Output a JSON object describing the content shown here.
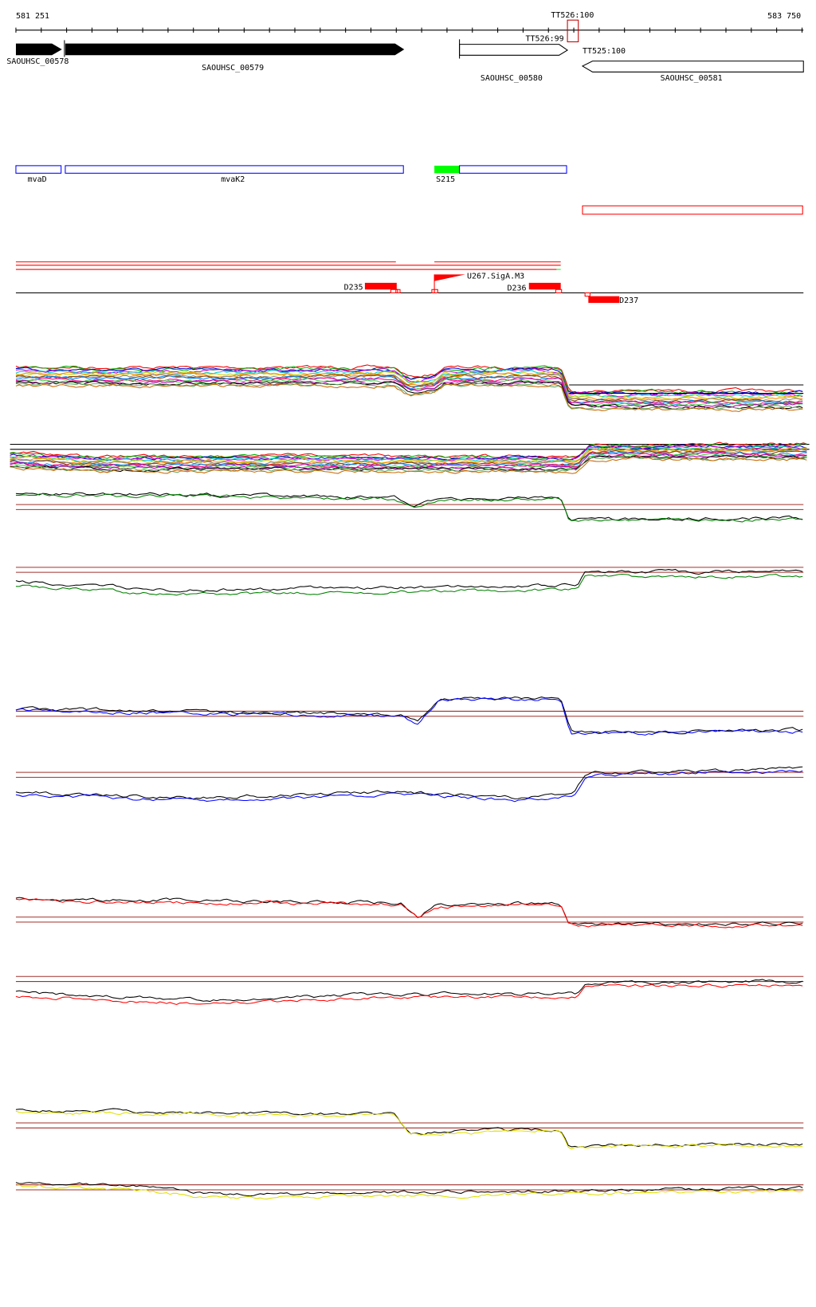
{
  "ruler": {
    "start_label": "581 251",
    "end_label": "583 750",
    "marker_label": "TT526:100"
  },
  "genes": [
    {
      "label": "SAOUHSC_00578",
      "strand": "+",
      "style": "filled"
    },
    {
      "label": "SAOUHSC_00579",
      "strand": "+",
      "style": "filled"
    },
    {
      "label": "SAOUHSC_00580",
      "strand": "+",
      "style": "open"
    },
    {
      "label": "SAOUHSC_00581",
      "strand": "-",
      "style": "open"
    }
  ],
  "overlap_labels": [
    "TT526:99",
    "TT525:100"
  ],
  "operons": [
    {
      "label": "mvaD"
    },
    {
      "label": "mvaK2"
    },
    {
      "label": "S215"
    }
  ],
  "features": [
    {
      "label": "D235"
    },
    {
      "label": "U267.SigA.M3"
    },
    {
      "label": "D236"
    },
    {
      "label": "D237"
    }
  ],
  "colors": {
    "gene": "#000000",
    "operon": "#0000ff",
    "promoter": "#00ff00",
    "feature": "#ff0000",
    "reference_line": "#a0302a",
    "track_green": "#008000",
    "track_blue": "#0000ff",
    "track_red": "#ff0000",
    "track_yellow": "#e0e000"
  }
}
